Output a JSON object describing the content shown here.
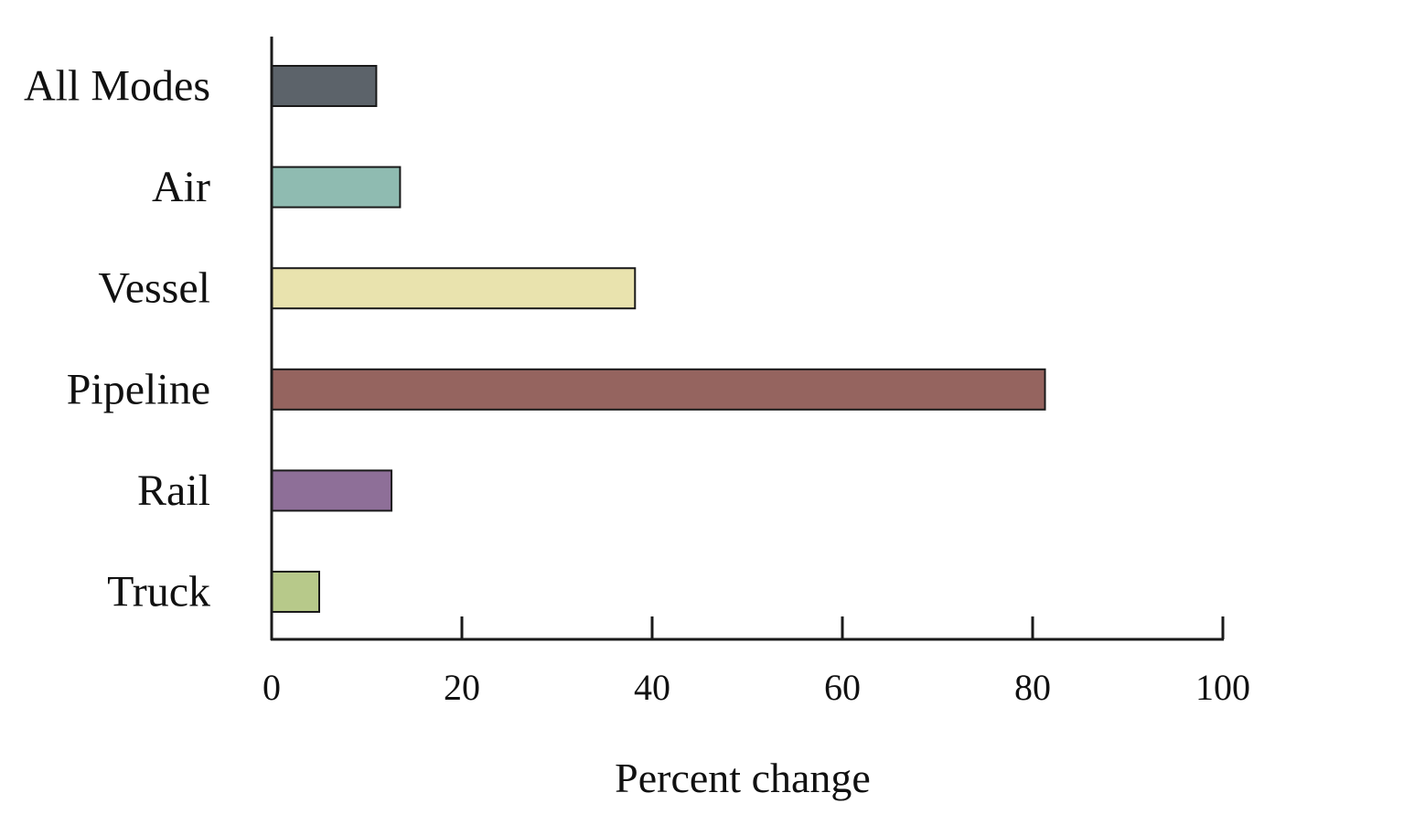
{
  "chart_data": {
    "type": "bar",
    "orientation": "horizontal",
    "title": "",
    "xlabel": "Percent change",
    "ylabel": "",
    "categories": [
      "All Modes",
      "Air",
      "Vessel",
      "Pipeline",
      "Rail",
      "Truck"
    ],
    "values": [
      11,
      13.5,
      38.2,
      81.3,
      12.6,
      5
    ],
    "colors": [
      "#5c636a",
      "#8fbbb1",
      "#e9e3ae",
      "#95645f",
      "#8e6f98",
      "#b7c98a"
    ],
    "xlim": [
      0,
      100
    ],
    "xticks": [
      0,
      20,
      40,
      60,
      80,
      100
    ],
    "xtick_labels": [
      "0",
      "20",
      "40",
      "60",
      "80",
      "100"
    ],
    "grid": false,
    "legend": "none"
  }
}
